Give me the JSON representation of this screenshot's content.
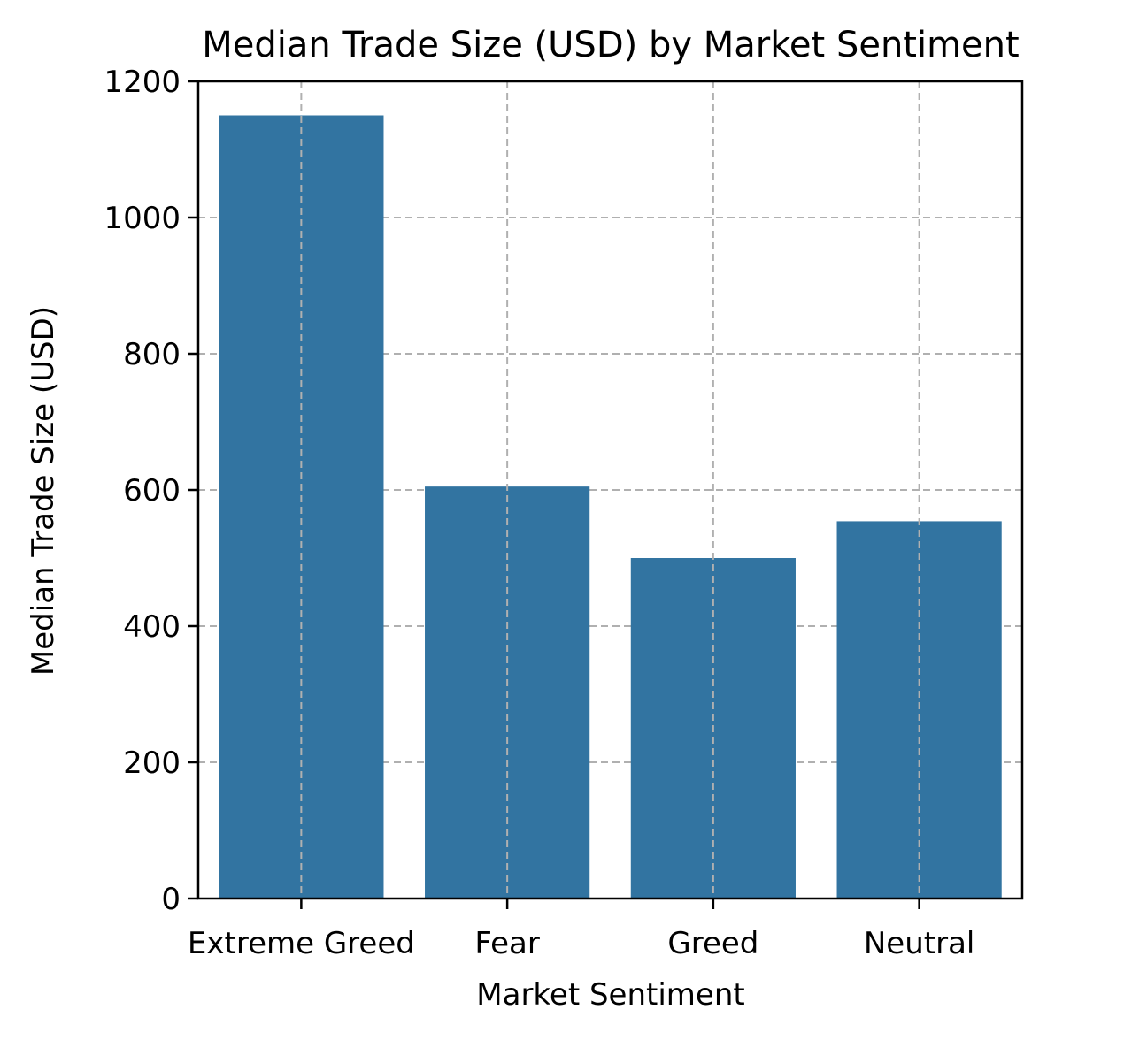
{
  "chart_data": {
    "type": "bar",
    "title": "Median Trade Size (USD) by Market Sentiment",
    "xlabel": "Market Sentiment",
    "ylabel": "Median Trade Size (USD)",
    "categories": [
      "Extreme Greed",
      "Fear",
      "Greed",
      "Neutral"
    ],
    "values": [
      1150,
      605,
      500,
      554
    ],
    "ylim": [
      0,
      1200
    ],
    "yticks": [
      0,
      200,
      400,
      600,
      800,
      1000,
      1200
    ],
    "ytick_labels": [
      "0",
      "200",
      "400",
      "600",
      "800",
      "1000",
      "1200"
    ],
    "grid": true,
    "legend": "none",
    "bar_color": "#3274a1",
    "grid_color": "#b0b0b0"
  }
}
